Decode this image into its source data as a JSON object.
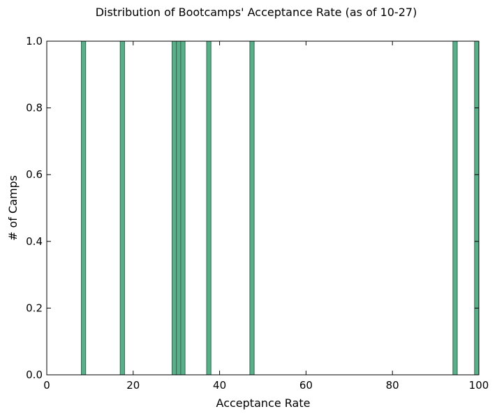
{
  "chart_data": {
    "type": "bar",
    "title": "Distribution of Bootcamps' Acceptance Rate (as of 10-27)",
    "xlabel": "Acceptance Rate",
    "ylabel": "# of Camps",
    "xlim": [
      0,
      100
    ],
    "ylim": [
      0.0,
      1.0
    ],
    "xticks": [
      "0",
      "20",
      "40",
      "60",
      "80",
      "100"
    ],
    "yticks": [
      "0.0",
      "0.2",
      "0.4",
      "0.6",
      "0.8",
      "1.0"
    ],
    "bars": [
      {
        "x": 8.5,
        "value": 1
      },
      {
        "x": 17.5,
        "value": 1
      },
      {
        "x": 29.5,
        "value": 1
      },
      {
        "x": 30.5,
        "value": 1
      },
      {
        "x": 31.5,
        "value": 1
      },
      {
        "x": 37.5,
        "value": 1
      },
      {
        "x": 47.5,
        "value": 1
      },
      {
        "x": 94.5,
        "value": 1
      },
      {
        "x": 99.5,
        "value": 1
      }
    ],
    "bin_width": 1,
    "grid": false,
    "colors": {
      "bar_fill": "#5aae8a",
      "bar_edge": "#2f6a4f",
      "axes": "#000000"
    }
  }
}
